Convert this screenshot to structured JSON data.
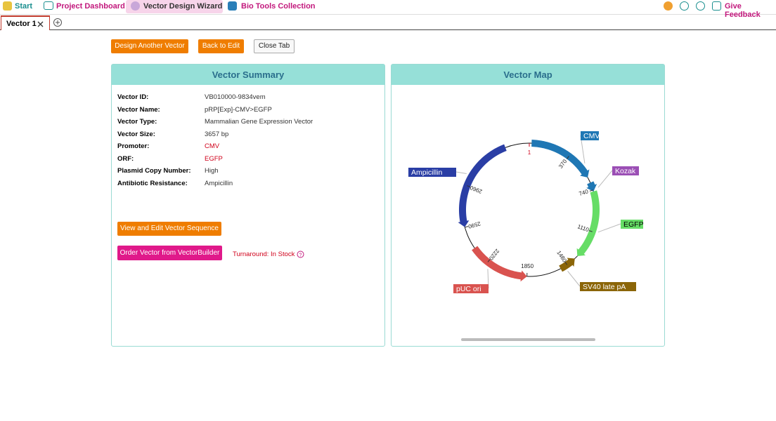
{
  "nav": {
    "items": [
      "Start",
      "Project Dashboard",
      "Vector Design Wizard",
      "Bio Tools Collection"
    ],
    "feedback": "Give Feedback"
  },
  "tabs": {
    "active": "Vector 1"
  },
  "actions": [
    "Design Another Vector",
    "Back to Edit",
    "Close Tab"
  ],
  "summary": {
    "title": "Vector Summary",
    "rows": [
      [
        "Vector ID:",
        "VB010000-9834vem"
      ],
      [
        "Vector Name:",
        "pRP[Exp]-CMV>EGFP"
      ],
      [
        "Vector Type:",
        "Mammalian Gene Expression Vector"
      ],
      [
        "Vector Size:",
        "3657 bp"
      ],
      [
        "Promoter:",
        "CMV"
      ],
      [
        "ORF:",
        "EGFP"
      ],
      [
        "Plasmid Copy Number:",
        "High"
      ],
      [
        "Antibiotic Resistance:",
        "Ampicillin"
      ]
    ],
    "edit_button": "View and Edit Vector Sequence",
    "order_button": "Order Vector from VectorBuilder",
    "turnaround": "Turnaround: In Stock"
  },
  "map": {
    "title": "Vector Map",
    "ticks": [
      "1",
      "370",
      "740",
      "1110",
      "1480",
      "1850",
      "2220",
      "2590",
      "2960"
    ],
    "features": [
      "CMV",
      "Kozak",
      "EGFP",
      "SV40 late pA",
      "pUC ori",
      "Ampicillin"
    ]
  }
}
